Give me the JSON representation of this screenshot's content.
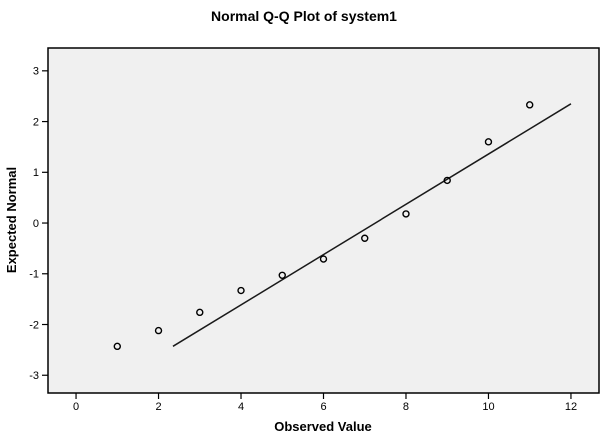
{
  "chart_data": {
    "type": "scatter",
    "title": "Normal Q-Q Plot of system1",
    "xlabel": "Observed Value",
    "ylabel": "Expected Normal",
    "x": [
      1,
      2,
      3,
      4,
      5,
      6,
      7,
      8,
      9,
      10,
      11
    ],
    "y": [
      -2.43,
      -2.12,
      -1.76,
      -1.33,
      -1.03,
      -0.71,
      -0.3,
      0.18,
      0.84,
      1.6,
      2.33
    ],
    "x_ticks": [
      0,
      2,
      4,
      6,
      8,
      10,
      12
    ],
    "y_ticks": [
      3,
      2,
      1,
      0,
      -1,
      -2,
      -3
    ],
    "xlim": [
      -0.68,
      12.68
    ],
    "ylim": [
      -3.35,
      3.45
    ],
    "fit_line": {
      "x1": 2.35,
      "y1": -2.43,
      "x2": 12.0,
      "y2": 2.35
    },
    "marker": "open-circle",
    "legend": "none",
    "grid": "off",
    "plot_bg": "#f0f0f0",
    "page_bg": "#ffffff",
    "line_color": "#1a1a1a",
    "marker_color": "#000000"
  }
}
